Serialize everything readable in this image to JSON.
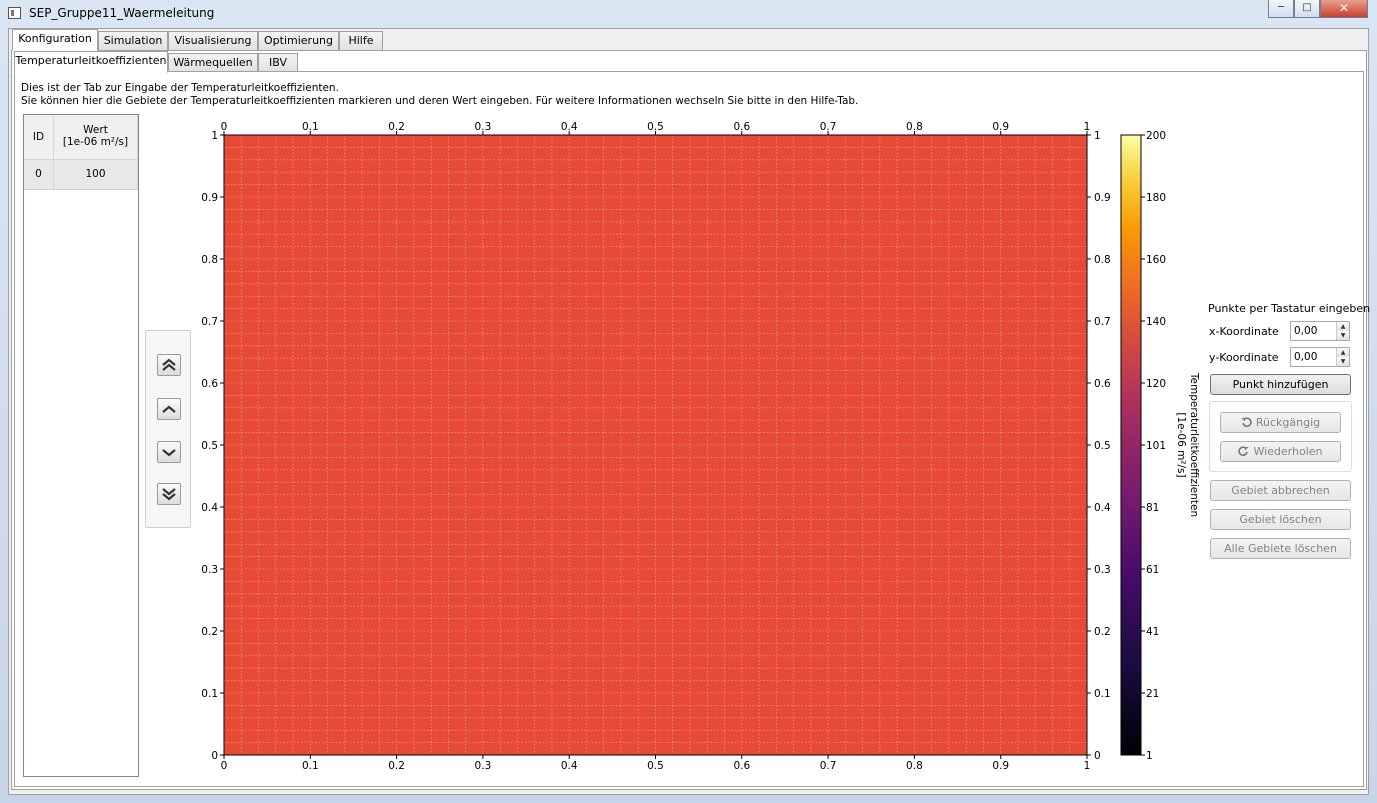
{
  "window": {
    "title": "SEP_Gruppe11_Waermeleitung"
  },
  "main_tabs": [
    "Konfiguration",
    "Simulation",
    "Visualisierung",
    "Optimierung",
    "Hilfe"
  ],
  "sub_tabs": [
    "Temperaturleitkoeffizienten",
    "Wärmequellen",
    "IBV"
  ],
  "info": {
    "line1": "Dies ist der Tab zur Eingabe der Temperaturleitkoeffizienten.",
    "line2": "Sie können hier die Gebiete der Temperaturleitkoeffizienten markieren und deren Wert eingeben. Für weitere Informationen wechseln Sie bitte in den Hilfe-Tab."
  },
  "table": {
    "headers": {
      "id": "ID",
      "wert": "Wert",
      "unit": "[1e-06 m²/s]"
    },
    "rows": [
      {
        "id": "0",
        "wert": "100"
      }
    ]
  },
  "nav_icons": [
    "chevron-double-up-icon",
    "chevron-up-icon",
    "chevron-down-icon",
    "chevron-double-down-icon"
  ],
  "chart_data": {
    "type": "heatmap",
    "x_ticks": [
      "0",
      "0.1",
      "0.2",
      "0.3",
      "0.4",
      "0.5",
      "0.6",
      "0.7",
      "0.8",
      "0.9",
      "1"
    ],
    "y_ticks": [
      "0",
      "0.1",
      "0.2",
      "0.3",
      "0.4",
      "0.5",
      "0.6",
      "0.7",
      "0.8",
      "0.9",
      "1"
    ],
    "xlim": [
      0,
      1
    ],
    "ylim": [
      0,
      1
    ],
    "grid": true,
    "field_value": 100,
    "fill_color": "#e84a38",
    "colorbar": {
      "ticks": [
        "1",
        "21",
        "41",
        "61",
        "81",
        "101",
        "120",
        "140",
        "160",
        "180",
        "200"
      ],
      "range": [
        1,
        200
      ],
      "label_line1": "Temperaturleitkoeffizienten",
      "label_line2": "[1e-06 m²/s]",
      "colormap": "inferno"
    }
  },
  "right_panel": {
    "heading": "Punkte per Tastatur eingeben",
    "x_label": "x-Koordinate",
    "x_value": "0,00",
    "y_label": "y-Koordinate",
    "y_value": "0,00",
    "add_point": "Punkt hinzufügen",
    "undo": "Rückgängig",
    "redo": "Wiederholen",
    "cancel_area": "Gebiet abbrechen",
    "delete_area": "Gebiet löschen",
    "delete_all": "Alle Gebiete löschen"
  }
}
